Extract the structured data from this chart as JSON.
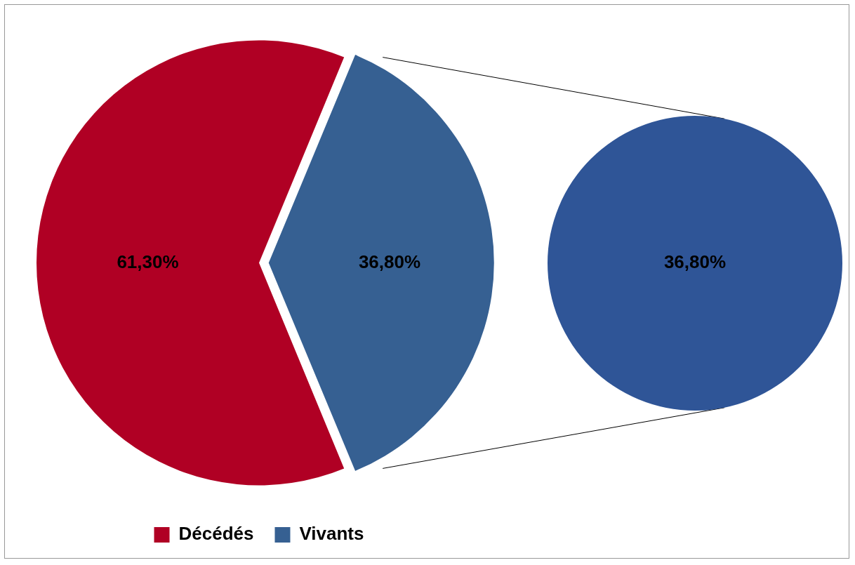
{
  "chart_data": [
    {
      "type": "pie",
      "categories": [
        "Décédés",
        "Vivants"
      ],
      "values": [
        61.3,
        36.8
      ],
      "colors": [
        "#b00024",
        "#366092"
      ],
      "value_labels": [
        "61,30%",
        "36,80%"
      ],
      "legend": "bottom"
    },
    {
      "type": "pie",
      "categories": [
        null
      ],
      "values": [
        36.8
      ],
      "colors": [
        "#2f5597"
      ],
      "value_labels": [
        "36,80%"
      ],
      "legend": false
    }
  ]
}
